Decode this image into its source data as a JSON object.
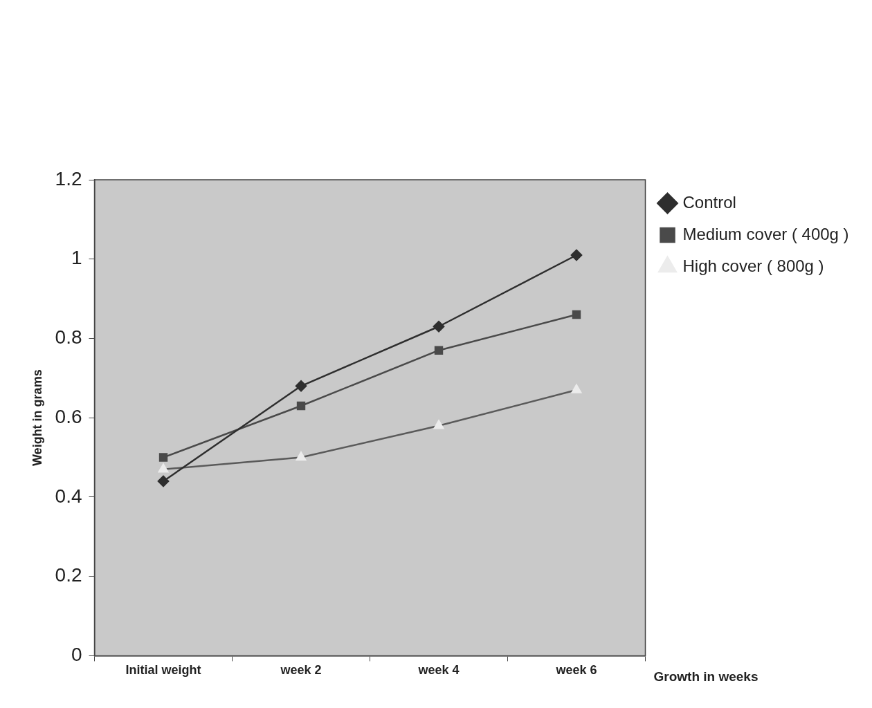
{
  "chart_data": {
    "type": "line",
    "xlabel": "Growth in weeks",
    "ylabel": "Weight in grams",
    "categories": [
      "Initial weight",
      "week 2",
      "week 4",
      "week 6"
    ],
    "series": [
      {
        "name": "Control",
        "color": "#2e2e2e",
        "marker": "diamond",
        "values": [
          0.44,
          0.68,
          0.83,
          1.01
        ]
      },
      {
        "name": "Medium cover ( 400g )",
        "color": "#4a4a4a",
        "marker": "square",
        "values": [
          0.5,
          0.63,
          0.77,
          0.86
        ]
      },
      {
        "name": "High cover ( 800g )",
        "color": "#5a5a5a",
        "marker": "triangle",
        "values": [
          0.47,
          0.5,
          0.58,
          0.67
        ]
      }
    ],
    "ylim": [
      0,
      1.2
    ],
    "yticks": [
      0,
      0.2,
      0.4,
      0.6,
      0.8,
      1,
      1.2
    ],
    "grid": false,
    "legend": "right"
  }
}
